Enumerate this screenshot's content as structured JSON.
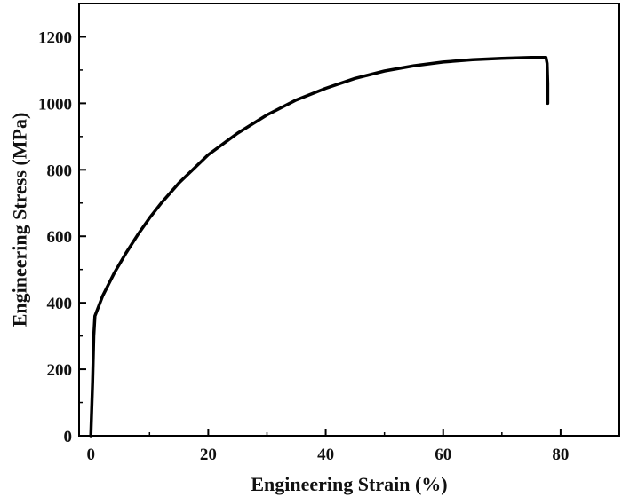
{
  "chart_data": {
    "type": "line",
    "xlabel": "Engineering Strain (%)",
    "ylabel": "Engineering Stress (MPa)",
    "xlim": [
      -2,
      90
    ],
    "ylim": [
      0,
      1300
    ],
    "x_ticks": [
      0,
      20,
      40,
      60,
      80
    ],
    "y_ticks": [
      0,
      200,
      400,
      600,
      800,
      1000,
      1200
    ],
    "grid": false,
    "legend": "none",
    "series": [
      {
        "color": "#000000",
        "points": [
          [
            0.0,
            0
          ],
          [
            0.3,
            160
          ],
          [
            0.5,
            300
          ],
          [
            0.7,
            360
          ],
          [
            2,
            420
          ],
          [
            4,
            490
          ],
          [
            6,
            550
          ],
          [
            8,
            605
          ],
          [
            10,
            655
          ],
          [
            12,
            700
          ],
          [
            15,
            760
          ],
          [
            20,
            845
          ],
          [
            25,
            910
          ],
          [
            30,
            965
          ],
          [
            35,
            1010
          ],
          [
            40,
            1045
          ],
          [
            45,
            1075
          ],
          [
            50,
            1097
          ],
          [
            55,
            1113
          ],
          [
            60,
            1124
          ],
          [
            65,
            1131
          ],
          [
            70,
            1135
          ],
          [
            75,
            1138
          ],
          [
            77.5,
            1138
          ],
          [
            77.7,
            1120
          ],
          [
            77.8,
            1060
          ],
          [
            77.8,
            1000
          ]
        ]
      }
    ]
  }
}
